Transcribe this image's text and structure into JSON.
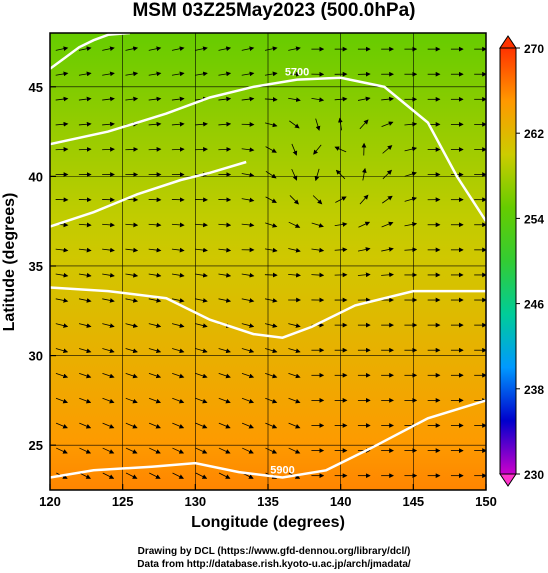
{
  "page": {
    "title": "MSM 03Z25May2023 (500.0hPa)",
    "footer_line1": "Drawing by DCL (https://www.gfd-dennou.org/library/dcl/)",
    "footer_line2": "Data from http://database.rish.kyoto-u.ac.jp/arch/jmadata/"
  },
  "chart_data": {
    "type": "heatmap",
    "title": "MSM 03Z25May2023 (500.0hPa)",
    "xlabel": "Longitude (degrees)",
    "ylabel": "Latitude  (degrees)",
    "xlim": [
      120,
      150
    ],
    "ylim": [
      22.5,
      48
    ],
    "x_ticks": [
      120,
      125,
      130,
      135,
      140,
      145,
      150
    ],
    "y_ticks": [
      25,
      30,
      35,
      40,
      45
    ],
    "colorbar": {
      "min": 230,
      "max": 270,
      "ticks": [
        230,
        238,
        246,
        254,
        262,
        270
      ],
      "colors": [
        "#cc00cc",
        "#0000cc",
        "#0099ff",
        "#00cc99",
        "#33cc33",
        "#66cc00",
        "#cccc00",
        "#ff9900",
        "#ff3300"
      ]
    },
    "temperature_field": {
      "description": "warmer south, cooler north",
      "south_value": 266,
      "north_value": 255
    },
    "contours": [
      {
        "label": "5900",
        "lon": [
          120,
          123,
          127,
          130,
          133,
          136,
          139,
          142,
          146,
          150
        ],
        "lat": [
          23.2,
          23.6,
          23.8,
          24.0,
          23.5,
          23.2,
          23.6,
          24.8,
          26.5,
          27.5
        ]
      },
      {
        "label": "",
        "lon": [
          120,
          124,
          128,
          131,
          134,
          136,
          138,
          141,
          145,
          150
        ],
        "lat": [
          33.8,
          33.6,
          33.2,
          32.0,
          31.2,
          31.0,
          31.6,
          32.8,
          33.6,
          33.6
        ]
      },
      {
        "label": "",
        "lon": [
          120,
          123,
          126,
          129,
          131,
          133.5
        ],
        "lat": [
          37.2,
          38.0,
          39.0,
          39.8,
          40.2,
          40.8
        ]
      },
      {
        "label": "5700",
        "lon": [
          120,
          124,
          128,
          131,
          134,
          137,
          140,
          143,
          146,
          148,
          150
        ],
        "lat": [
          41.8,
          42.5,
          43.5,
          44.4,
          45.0,
          45.4,
          45.5,
          45.0,
          43.0,
          40.0,
          37.5
        ]
      },
      {
        "label": "",
        "lon": [
          120,
          121,
          122,
          123,
          124,
          125.5
        ],
        "lat": [
          46.0,
          46.6,
          47.2,
          47.6,
          47.9,
          48.0
        ]
      }
    ],
    "wind_field": {
      "representation": "streamlines with arrows",
      "trough_center_lon": 139.5,
      "trough_center_lat": 39.5
    }
  }
}
